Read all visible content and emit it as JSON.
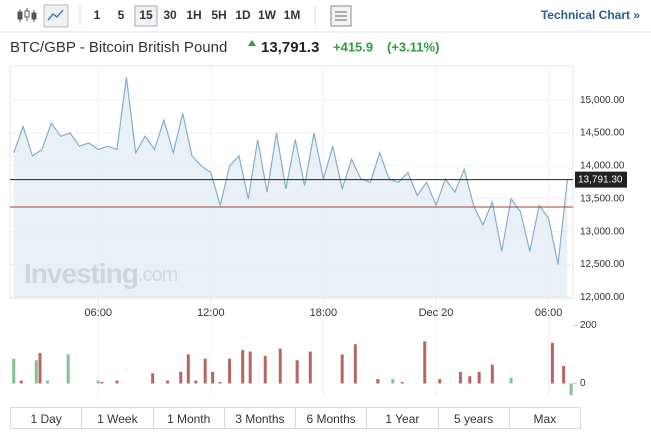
{
  "toolbar": {
    "intervals": [
      "1",
      "5",
      "15",
      "30",
      "1H",
      "5H",
      "1D",
      "1W",
      "1M"
    ],
    "active_interval": 2,
    "link": "Technical Chart »"
  },
  "header": {
    "symbol": "BTC/GBP - Bitcoin British Pound",
    "price": "13,791.3",
    "change": "+415.9",
    "change_pct": "(+3.11%)"
  },
  "watermark": {
    "brand": "Investing",
    "suffix": ".com"
  },
  "ranges": [
    "1 Day",
    "1 Week",
    "1 Month",
    "3 Months",
    "6 Months",
    "1 Year",
    "5 years",
    "Max"
  ],
  "chart_data": [
    {
      "type": "line",
      "color": "#86aecb",
      "fill": "#e4eef5",
      "x": [
        1.5,
        2,
        2.5,
        3,
        3.5,
        4,
        4.5,
        5,
        5.5,
        6,
        6.5,
        7,
        7.5,
        8,
        8.5,
        9,
        9.5,
        10,
        10.5,
        11,
        11.5,
        12,
        12.5,
        13,
        13.5,
        14,
        14.5,
        15,
        15.5,
        16,
        16.5,
        17,
        17.5,
        18,
        18.5,
        19,
        19.5,
        20,
        20.5,
        21,
        21.5,
        22,
        22.5,
        23,
        23.5,
        24,
        24.5,
        25,
        25.5,
        26,
        26.5,
        27,
        27.5,
        28,
        28.5,
        29,
        29.5,
        30,
        30.5,
        31
      ],
      "values": [
        14200,
        14600,
        14150,
        14250,
        14650,
        14450,
        14500,
        14300,
        14350,
        14250,
        14300,
        14250,
        15350,
        14200,
        14450,
        14250,
        14700,
        14200,
        14800,
        14150,
        14000,
        13900,
        13400,
        14000,
        14150,
        13500,
        14400,
        13600,
        14500,
        13650,
        14400,
        13700,
        14500,
        13800,
        14300,
        13650,
        14100,
        13800,
        13750,
        14200,
        13800,
        13750,
        13900,
        13550,
        13750,
        13400,
        13800,
        13600,
        13950,
        13400,
        13100,
        13450,
        12700,
        13500,
        13300,
        12700,
        13400,
        13200,
        12500,
        13791.3
      ],
      "xlim": [
        1.3,
        31.3
      ],
      "ylim": [
        11990,
        15520
      ],
      "xticks": [
        {
          "value": 6,
          "label": "06:00"
        },
        {
          "value": 12,
          "label": "12:00"
        },
        {
          "value": 18,
          "label": "18:00"
        },
        {
          "value": 24,
          "label": "Dec 20"
        },
        {
          "value": 30,
          "label": "06:00"
        }
      ],
      "yticks": [
        {
          "value": 12000,
          "label": "12,000.00"
        },
        {
          "value": 12500,
          "label": "12,500.00"
        },
        {
          "value": 13000,
          "label": "13,000.00"
        },
        {
          "value": 13500,
          "label": "13,500.00"
        },
        {
          "value": 14000,
          "label": "14,000.00"
        },
        {
          "value": 14500,
          "label": "14,500.00"
        },
        {
          "value": 15000,
          "label": "15,000.00"
        }
      ],
      "last_label": {
        "value": 13791.3,
        "label": "13,791.30"
      },
      "reference_line": {
        "value": 13375.4,
        "color": "#a0453c"
      },
      "grid": true
    },
    {
      "type": "bar",
      "x": [
        1.5,
        1.9,
        2.7,
        2.9,
        3.3,
        4.4,
        6.0,
        6.2,
        7.0,
        8.9,
        9.7,
        10.4,
        10.8,
        11.2,
        11.7,
        12.1,
        12.5,
        13.0,
        13.7,
        14.1,
        14.9,
        15.7,
        16.6,
        17.3,
        19.0,
        19.7,
        20.9,
        21.7,
        22.2,
        23.4,
        24.2,
        25.3,
        25.8,
        26.3,
        27.0,
        28.0,
        30.2,
        30.8,
        31.2
      ],
      "values": [
        85,
        10,
        80,
        105,
        10,
        100,
        10,
        5,
        10,
        35,
        10,
        40,
        100,
        10,
        85,
        40,
        5,
        85,
        115,
        110,
        95,
        120,
        80,
        110,
        100,
        135,
        15,
        15,
        5,
        145,
        15,
        40,
        25,
        40,
        65,
        20,
        140,
        60,
        -40
      ],
      "colors": [
        "#7fc48f",
        "#b8665d",
        "#7fc48f",
        "#b8665d",
        "#7fc48f",
        "#7fc48f",
        "#7fc48f",
        "#b8665d",
        "#b8665d",
        "#b8665d",
        "#b8665d",
        "#b8665d",
        "#b8665d",
        "#b8665d",
        "#b8665d",
        "#b8665d",
        "#b8665d",
        "#b8665d",
        "#b8665d",
        "#b8665d",
        "#b8665d",
        "#b8665d",
        "#b8665d",
        "#b8665d",
        "#b8665d",
        "#b8665d",
        "#b8665d",
        "#7fc48f",
        "#b8665d",
        "#b8665d",
        "#b8665d",
        "#b8665d",
        "#b8665d",
        "#b8665d",
        "#b8665d",
        "#7fc48f",
        "#b8665d",
        "#b8665d",
        "#7fc48f"
      ],
      "xlim": [
        1.3,
        31.3
      ],
      "ylim": [
        -50,
        270
      ],
      "yticks": [
        0,
        200
      ]
    }
  ]
}
